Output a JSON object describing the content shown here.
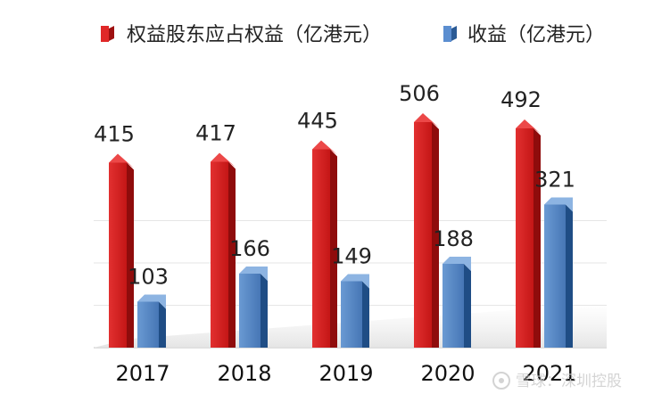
{
  "chart_data": {
    "type": "bar",
    "categories": [
      "2017",
      "2018",
      "2019",
      "2020",
      "2021"
    ],
    "series": [
      {
        "name": "权益股东应占权益（亿港元）",
        "values": [
          415,
          417,
          445,
          506,
          492
        ],
        "color": "#d42020"
      },
      {
        "name": "收益（亿港元）",
        "values": [
          103,
          166,
          149,
          188,
          321
        ],
        "color": "#4f86c6"
      }
    ],
    "data_labels": [
      [
        "415",
        "417",
        "445",
        "506",
        "492"
      ],
      [
        "103",
        "166",
        "149",
        "188",
        "321"
      ]
    ],
    "ylim": [
      0,
      550
    ],
    "grid": true,
    "legend_position": "top"
  },
  "watermark": {
    "logo_icon": "snowball-icon",
    "text": "雪球：深圳控股"
  }
}
